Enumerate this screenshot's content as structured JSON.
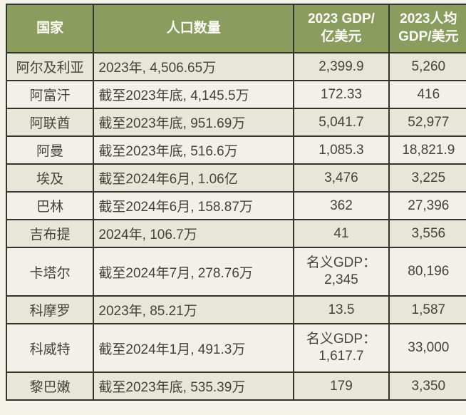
{
  "table": {
    "type": "table",
    "columns": {
      "country": "国家",
      "population": "人口数量",
      "gdp": "2023 GDP/\n亿美元",
      "gdp_per_capita": "2023人均\nGDP/美元"
    },
    "rows": [
      {
        "country": "阿尔及利亚",
        "population": "2023年, 4,506.65万",
        "gdp": "2,399.9",
        "gdp_per_capita": "5,260"
      },
      {
        "country": "阿富汗",
        "population": "截至2023年底, 4,145.5万",
        "gdp": "172.33",
        "gdp_per_capita": "416"
      },
      {
        "country": "阿联酋",
        "population": "截至2023年底, 951.69万",
        "gdp": "5,041.7",
        "gdp_per_capita": "52,977"
      },
      {
        "country": "阿曼",
        "population": "截至2023年底, 516.6万",
        "gdp": "1,085.3",
        "gdp_per_capita": "18,821.9"
      },
      {
        "country": "埃及",
        "population": "截至2024年6月, 1.06亿",
        "gdp": "3,476",
        "gdp_per_capita": "3,225"
      },
      {
        "country": "巴林",
        "population": "截至2024年6月, 158.87万",
        "gdp": "362",
        "gdp_per_capita": "27,396"
      },
      {
        "country": "吉布提",
        "population": "2024年, 106.7万",
        "gdp": "41",
        "gdp_per_capita": "3,556"
      },
      {
        "country": "卡塔尔",
        "population": "截至2024年7月, 278.76万",
        "gdp": "名义GDP：\n2,345",
        "gdp_per_capita": "80,196"
      },
      {
        "country": "科摩罗",
        "population": "2023年, 85.21万",
        "gdp": "13.5",
        "gdp_per_capita": "1,587"
      },
      {
        "country": "科威特",
        "population": "截至2024年1月, 491.3万",
        "gdp": "名义GDP：\n1,617.7",
        "gdp_per_capita": "33,000"
      },
      {
        "country": "黎巴嫩",
        "population": "截至2023年底, 535.39万",
        "gdp": "179",
        "gdp_per_capita": "3,350"
      }
    ],
    "colors": {
      "header_bg": "#8a9d5e",
      "header_text": "#fdfdf8",
      "row_bg_odd": "#e6e7d8",
      "row_bg_even": "#f1f1ea",
      "border": "#34332b",
      "body_text": "#454339",
      "page_bg": "#f5f2e9"
    }
  }
}
